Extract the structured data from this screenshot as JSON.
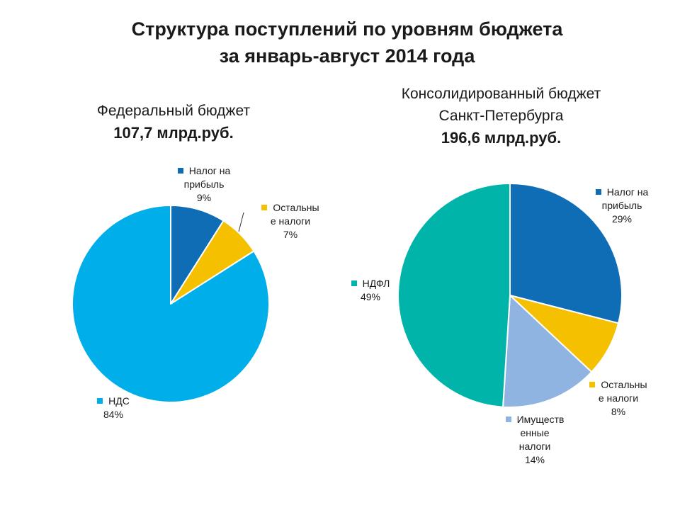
{
  "title": {
    "line1": "Структура поступлений по уровням бюджета",
    "line2": "за январь-август 2014 года"
  },
  "subtitles": {
    "federal": {
      "name": "Федеральный бюджет",
      "amount": "107,7 млрд.руб."
    },
    "spb": {
      "name_line1": "Консолидированный бюджет",
      "name_line2": "Санкт-Петербурга",
      "amount": "196,6 млрд.руб."
    }
  },
  "colors": {
    "profit_tax": "#0e6db5",
    "other_taxes": "#f5c000",
    "vat": "#00aeea",
    "ndfl": "#00b4aa",
    "property": "#8fb4e2"
  },
  "chart_data": [
    {
      "type": "pie",
      "title": "Федеральный бюджет",
      "subtitle": "107,7 млрд.руб.",
      "slices": [
        {
          "lines": [
            "Налог на",
            "прибыль"
          ],
          "value": 9,
          "pct": "9%",
          "color": "#0e6db5"
        },
        {
          "lines": [
            "Остальны",
            "е налоги"
          ],
          "value": 7,
          "pct": "7%",
          "color": "#f5c000"
        },
        {
          "lines": [
            "НДС"
          ],
          "value": 84,
          "pct": "84%",
          "color": "#00aeea"
        }
      ]
    },
    {
      "type": "pie",
      "title": "Консолидированный бюджет Санкт-Петербурга",
      "subtitle": "196,6 млрд.руб.",
      "slices": [
        {
          "lines": [
            "Налог на",
            "прибыль"
          ],
          "value": 29,
          "pct": "29%",
          "color": "#0e6db5"
        },
        {
          "lines": [
            "Остальны",
            "е налоги"
          ],
          "value": 8,
          "pct": "8%",
          "color": "#f5c000"
        },
        {
          "lines": [
            "Имуществ",
            "енные",
            "налоги"
          ],
          "value": 14,
          "pct": "14%",
          "color": "#8fb4e2"
        },
        {
          "lines": [
            "НДФЛ"
          ],
          "value": 49,
          "pct": "49%",
          "color": "#00b4aa"
        }
      ]
    }
  ]
}
